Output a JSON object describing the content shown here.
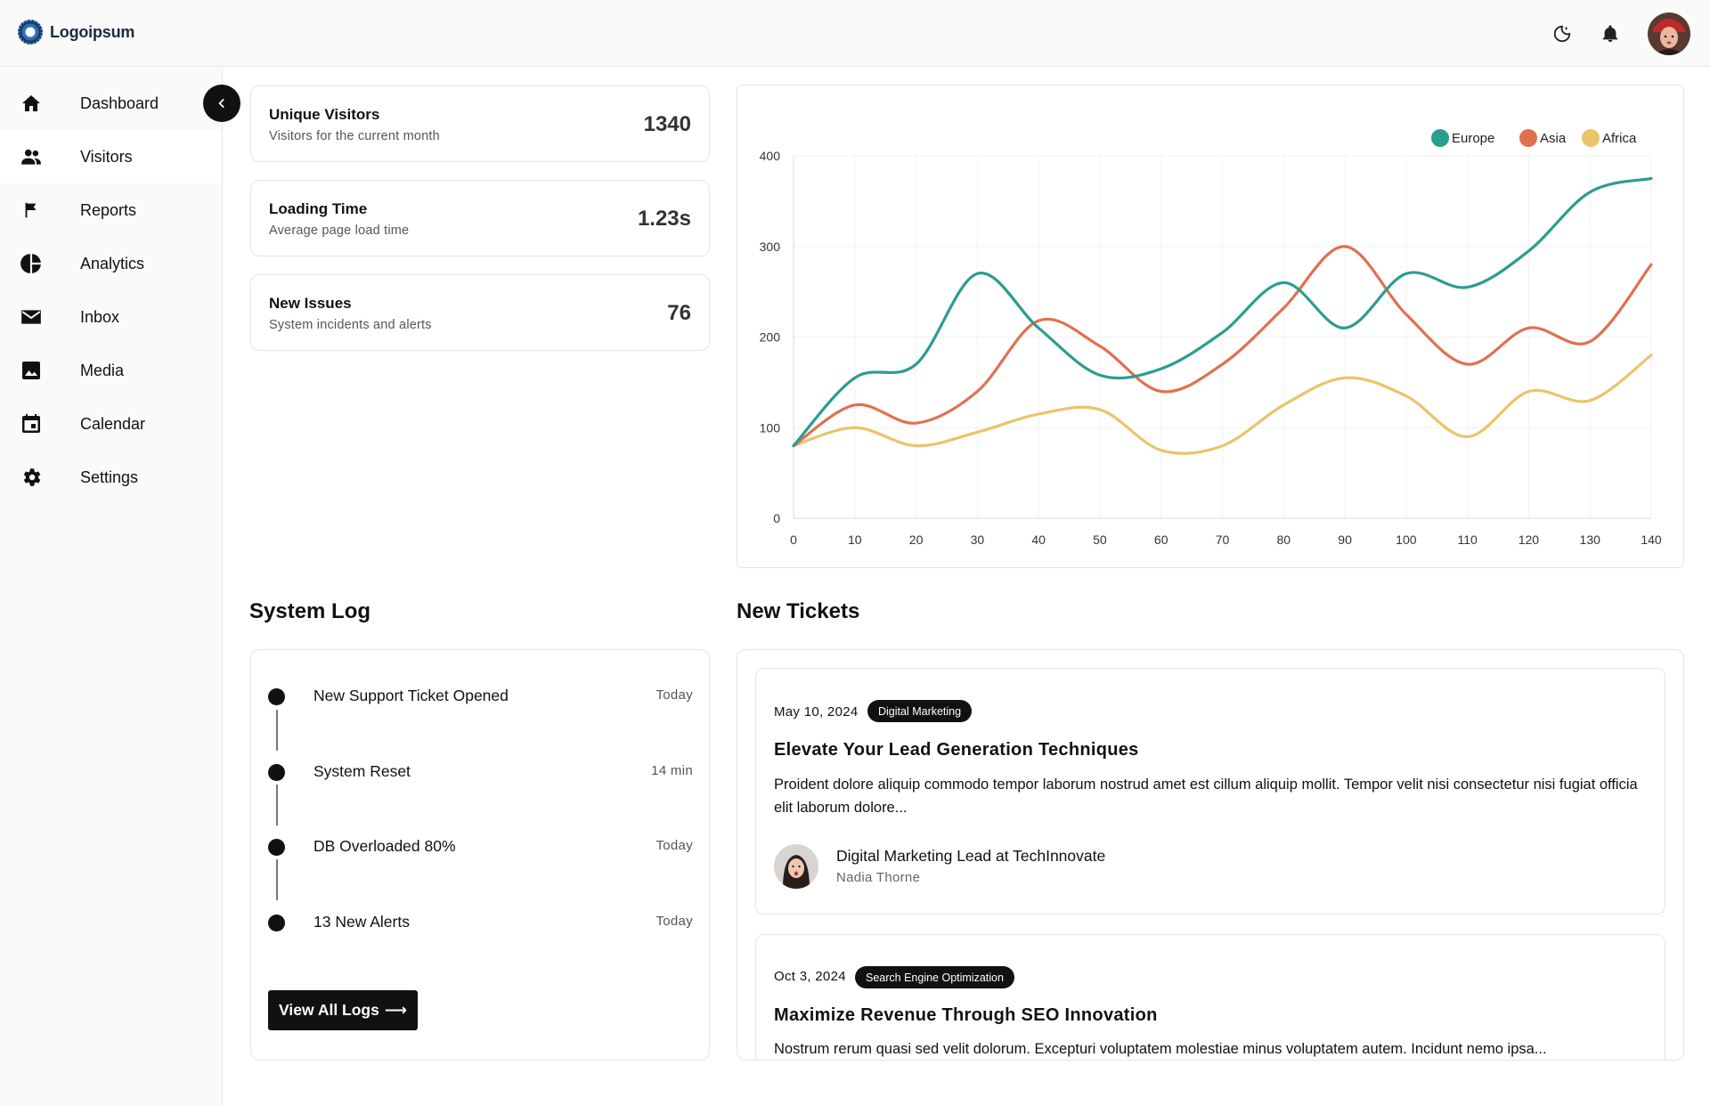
{
  "header": {
    "logo_text": "Logoipsum",
    "icons": [
      "theme-toggle-icon",
      "bell-icon",
      "avatar"
    ]
  },
  "sidebar": {
    "items": [
      {
        "label": "Dashboard",
        "icon": "home-icon"
      },
      {
        "label": "Visitors",
        "icon": "users-icon",
        "active": true
      },
      {
        "label": "Reports",
        "icon": "flag-icon"
      },
      {
        "label": "Analytics",
        "icon": "pie-chart-icon"
      },
      {
        "label": "Inbox",
        "icon": "mail-icon"
      },
      {
        "label": "Media",
        "icon": "image-icon"
      },
      {
        "label": "Calendar",
        "icon": "calendar-icon"
      },
      {
        "label": "Settings",
        "icon": "gear-icon"
      }
    ]
  },
  "stats": [
    {
      "title": "Unique Visitors",
      "subtitle": "Visitors for the current month",
      "value": "1340"
    },
    {
      "title": "Loading Time",
      "subtitle": "Average page load time",
      "value": "1.23s"
    },
    {
      "title": "New Issues",
      "subtitle": "System incidents and alerts",
      "value": "76"
    }
  ],
  "chart_data": {
    "type": "line",
    "x": [
      0,
      10,
      20,
      30,
      40,
      50,
      60,
      70,
      80,
      90,
      100,
      110,
      120,
      130,
      140
    ],
    "xlim": [
      0,
      140
    ],
    "ylim": [
      0,
      400
    ],
    "xticks": [
      0,
      10,
      20,
      30,
      40,
      50,
      60,
      70,
      80,
      90,
      100,
      110,
      120,
      130,
      140
    ],
    "yticks": [
      0,
      100,
      200,
      300,
      400
    ],
    "grid": true,
    "legend_position": "top-right",
    "series": [
      {
        "name": "Europe",
        "color": "#2a9d8f",
        "values": [
          80,
          155,
          170,
          270,
          210,
          158,
          165,
          205,
          260,
          210,
          270,
          255,
          295,
          360,
          375
        ]
      },
      {
        "name": "Asia",
        "color": "#e07050",
        "values": [
          80,
          125,
          105,
          140,
          218,
          190,
          140,
          170,
          232,
          300,
          225,
          170,
          210,
          195,
          280
        ]
      },
      {
        "name": "Africa",
        "color": "#e9c46a",
        "values": [
          80,
          100,
          80,
          95,
          115,
          120,
          75,
          80,
          125,
          155,
          135,
          90,
          140,
          130,
          180
        ]
      }
    ]
  },
  "system_log": {
    "title": "System Log",
    "items": [
      {
        "title": "New Support Ticket Opened",
        "time": "Today"
      },
      {
        "title": "System Reset",
        "time": "14 min"
      },
      {
        "title": "DB Overloaded 80%",
        "time": "Today"
      },
      {
        "title": "13 New Alerts",
        "time": "Today"
      }
    ],
    "button_label": "View All Logs"
  },
  "tickets": {
    "title": "New Tickets",
    "items": [
      {
        "date": "May 10, 2024",
        "tag": "Digital Marketing",
        "title": "Elevate Your Lead Generation Techniques",
        "body": "Proident dolore aliquip commodo tempor laborum nostrud amet est cillum aliquip mollit. Tempor velit nisi consectetur nisi fugiat officia elit laborum dolore...",
        "author_role": "Digital Marketing Lead at TechInnovate",
        "author_name": "Nadia Thorne"
      },
      {
        "date": "Oct 3, 2024",
        "tag": "Search Engine Optimization",
        "title": "Maximize Revenue Through SEO Innovation",
        "body": "Nostrum rerum quasi sed velit dolorum. Excepturi voluptatem molestiae minus voluptatem autem. Incidunt nemo ipsa..."
      }
    ]
  }
}
